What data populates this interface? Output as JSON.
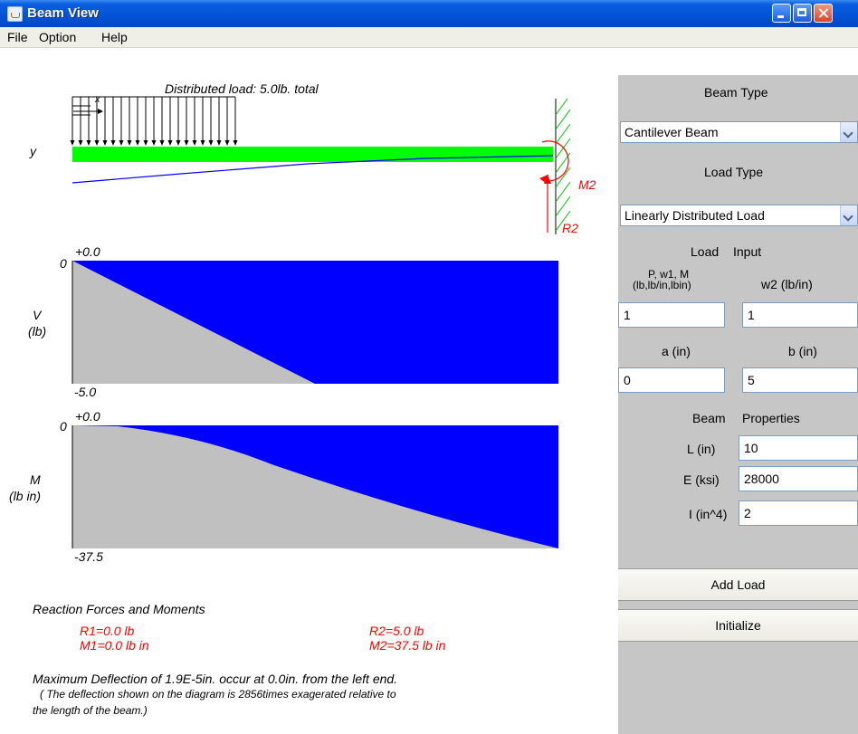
{
  "window": {
    "title": "Beam View"
  },
  "menu": {
    "items": [
      "File",
      "Option",
      "Help"
    ]
  },
  "diagram": {
    "load_caption": "Distributed load: 5.0lb. total",
    "y_label": "y",
    "x_marker": "x",
    "moment_label": "M2",
    "reaction_label": "R2"
  },
  "shear": {
    "top": "+0.0",
    "zero": "0",
    "bottom": "-5.0",
    "label": "V",
    "unit": "(lb)"
  },
  "moment": {
    "top": "+0.0",
    "zero": "0",
    "bottom": "-37.5",
    "label": "M",
    "unit": "(lb in)"
  },
  "reactions": {
    "title": "Reaction Forces and Moments",
    "r1": "R1=0.0 lb",
    "m1": "M1=0.0 lb in",
    "r2": "R2=5.0 lb",
    "m2": "M2=37.5 lb in"
  },
  "deflection": {
    "line1": "Maximum Deflection of 1.9E-5in. occur at 0.0in. from the left end.",
    "line2": "( The deflection shown on the diagram is 2856times exagerated relative to",
    "line3": "the length of the beam.)"
  },
  "panel": {
    "beam_type_label": "Beam Type",
    "beam_type_value": "Cantilever Beam",
    "load_type_label": "Load Type",
    "load_type_value": "Linearly Distributed Load",
    "load_input_a": "Load",
    "load_input_b": "Input",
    "p_label_1": "P, w1, M",
    "p_label_2": "(lb,lb/in,lbin)",
    "w2_label": "w2 (lb/in)",
    "p_value": "1",
    "w2_value": "1",
    "a_label": "a (in)",
    "b_label": "b (in)",
    "a_value": "0",
    "b_value": "5",
    "props_a": "Beam",
    "props_b": "Properties",
    "L_label": "L  (in)",
    "E_label": "E (ksi)",
    "I_label": "I (in^4)",
    "L_value": "10",
    "E_value": "28000",
    "I_value": "2",
    "add_load": "Add Load",
    "initialize": "Initialize"
  },
  "colors": {
    "beam": "#00ff00",
    "diagram_fill": "#0000ff",
    "diagram_region": "#c0c0c0",
    "reaction_text": "#ff0000",
    "panel_bg": "#c6c6c6"
  }
}
